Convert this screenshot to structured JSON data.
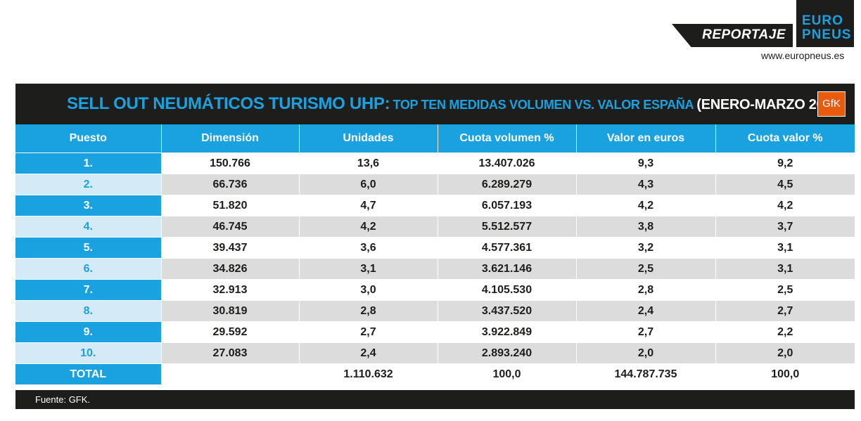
{
  "brand": {
    "tag": "REPORTAJE",
    "logo_line1": "EURO",
    "logo_line2": "PNEUS",
    "site": "www.europneus.es"
  },
  "title": {
    "main": "SELL OUT NEUMÁTICOS TURISMO UHP:",
    "sub": "TOP TEN MEDIDAS VOLUMEN VS. VALOR ESPAÑA",
    "date": "(ENERO-MARZO 2025)",
    "logo_text": "GfK"
  },
  "headers": [
    "Puesto",
    "Dimensión",
    "Unidades",
    "Cuota volumen %",
    "Valor en euros",
    "Cuota valor %"
  ],
  "rows": [
    [
      "1.",
      "150.766",
      "13,6",
      "13.407.026",
      "9,3",
      "9,2"
    ],
    [
      "2.",
      "66.736",
      "6,0",
      "6.289.279",
      "4,3",
      "4,5"
    ],
    [
      "3.",
      "51.820",
      "4,7",
      "6.057.193",
      "4,2",
      "4,2"
    ],
    [
      "4.",
      "46.745",
      "4,2",
      "5.512.577",
      "3,8",
      "3,7"
    ],
    [
      "5.",
      "39.437",
      "3,6",
      "4.577.361",
      "3,2",
      "3,1"
    ],
    [
      "6.",
      "34.826",
      "3,1",
      "3.621.146",
      "2,5",
      "3,1"
    ],
    [
      "7.",
      "32.913",
      "3,0",
      "4.105.530",
      "2,8",
      "2,5"
    ],
    [
      "8.",
      "30.819",
      "2,8",
      "3.437.520",
      "2,4",
      "2,7"
    ],
    [
      "9.",
      "29.592",
      "2,7",
      "3.922.849",
      "2,7",
      "2,2"
    ],
    [
      "10.",
      "27.083",
      "2,4",
      "2.893.240",
      "2,0",
      "2,0"
    ]
  ],
  "total": [
    "TOTAL",
    "",
    "1.110.632",
    "100,0",
    "144.787.735",
    "100,0"
  ],
  "footer": "Fuente: GFK.",
  "colors": {
    "accent": "#1aa1e0",
    "dark": "#1d1d1b",
    "gfk": "#ea5a0c"
  }
}
